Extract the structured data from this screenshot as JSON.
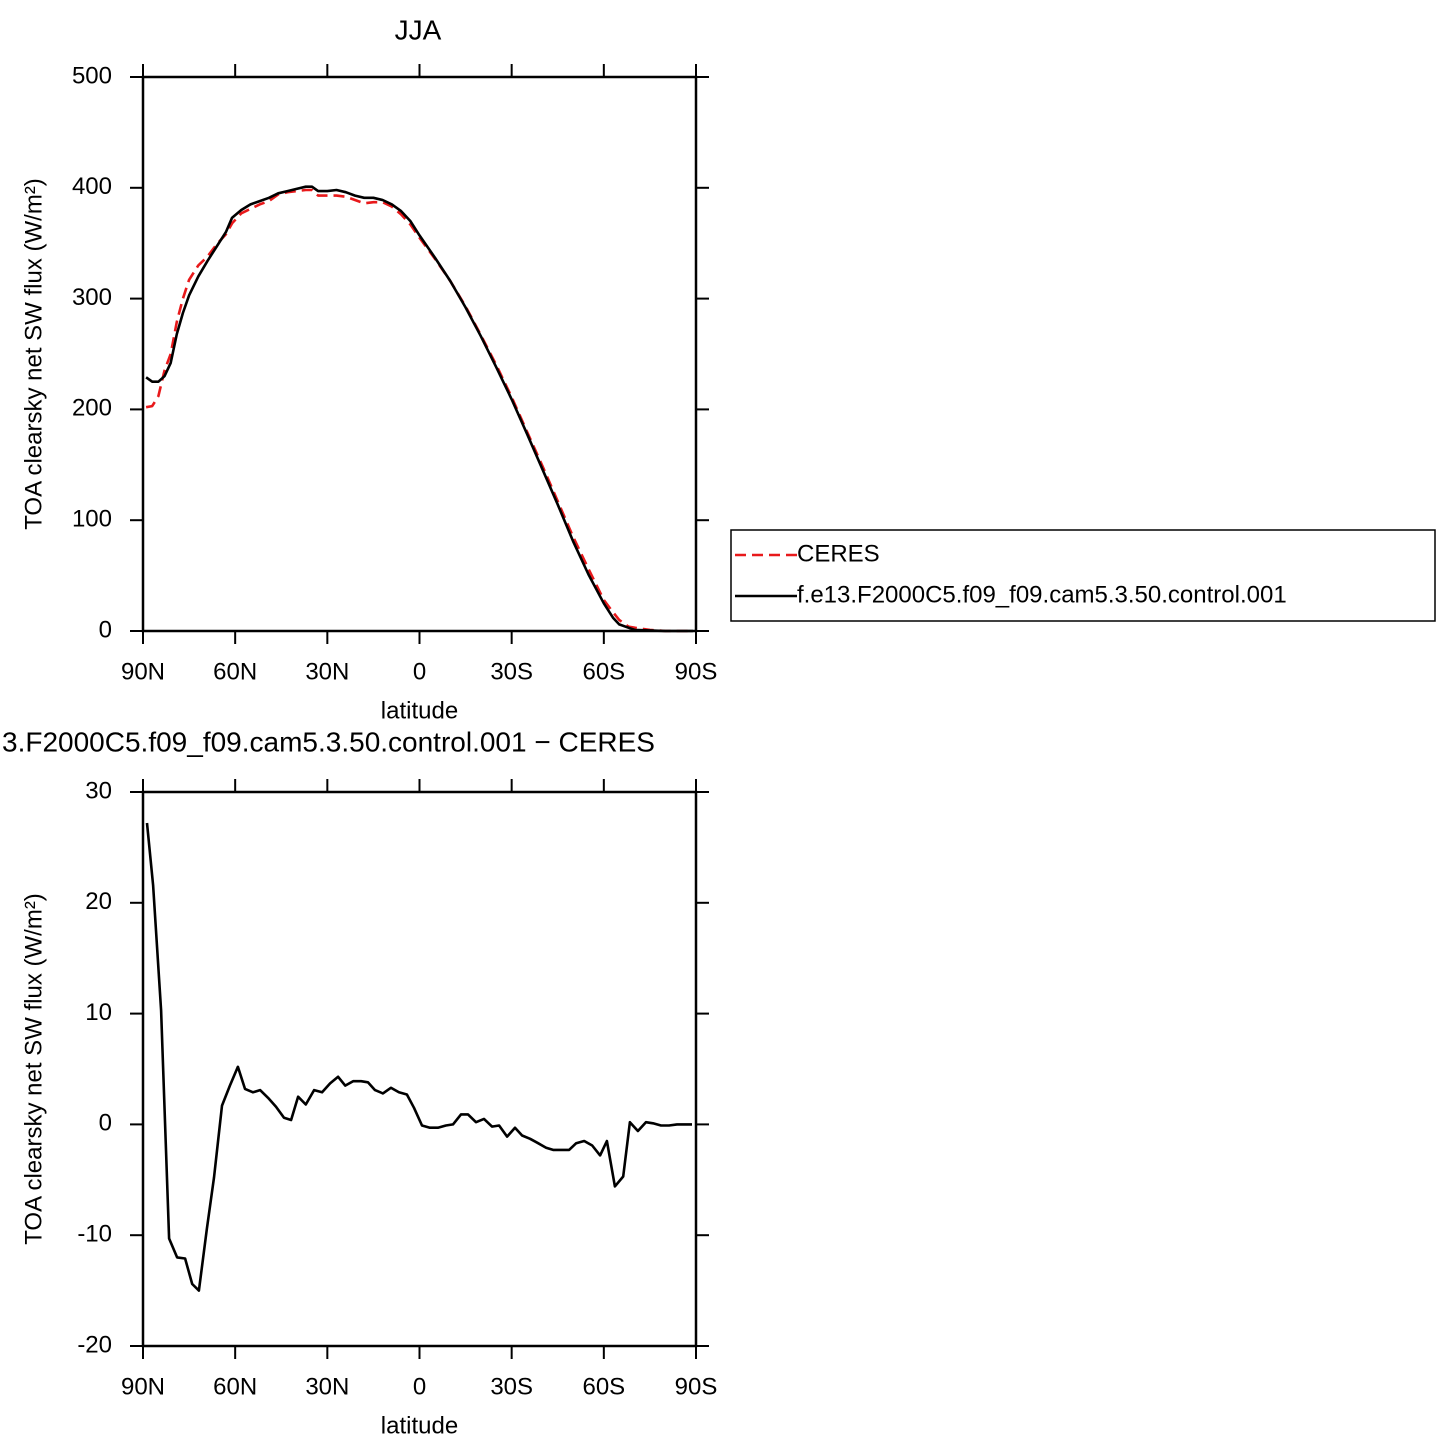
{
  "chart_data": [
    {
      "type": "line",
      "title": "JJA",
      "xlabel": "latitude",
      "ylabel": "TOA clearsky net SW flux (W/m²)",
      "x": [
        89,
        87,
        85,
        83,
        81,
        79,
        77,
        75,
        72,
        69,
        66,
        63,
        61,
        58,
        55,
        52,
        49,
        46,
        43,
        40,
        37,
        35,
        33,
        30,
        27,
        24,
        21,
        18,
        15,
        12,
        9,
        6,
        3,
        0,
        -5,
        -10,
        -15,
        -20,
        -25,
        -30,
        -35,
        -40,
        -45,
        -50,
        -55,
        -60,
        -63,
        -65,
        -68,
        -70,
        -75,
        -80,
        -85,
        -89
      ],
      "series": [
        {
          "name": "CERES",
          "color": "#e8191b",
          "dash": true,
          "values": [
            202,
            203,
            212,
            235,
            250,
            279,
            300,
            317,
            330,
            338,
            349,
            358,
            368,
            377,
            381,
            385,
            388,
            394,
            396,
            397,
            398,
            398,
            393,
            393,
            393,
            392,
            389,
            386,
            387,
            387,
            383,
            376,
            367,
            355,
            336,
            316,
            293,
            267,
            240,
            211,
            180,
            149,
            117,
            85,
            56,
            28,
            17,
            10,
            4,
            3,
            1,
            0,
            0,
            0
          ]
        },
        {
          "name": "f.e13.F2000C5.f09_f09.cam5.3.50.control.001",
          "color": "#000000",
          "dash": false,
          "values": [
            229,
            225,
            225,
            230,
            242,
            268,
            287,
            303,
            320,
            334,
            347,
            360,
            373,
            380,
            385,
            388,
            391,
            395,
            397,
            399,
            401,
            401,
            397,
            397,
            398,
            396,
            393,
            391,
            391,
            389,
            385,
            379,
            370,
            357,
            337,
            316,
            292,
            266,
            238,
            209,
            178,
            146,
            114,
            81,
            51,
            25,
            12,
            6,
            3,
            1,
            0.5,
            0,
            0,
            0
          ]
        }
      ],
      "xlim": [
        90,
        -90
      ],
      "xticks": [
        {
          "value": 90,
          "label": "90N"
        },
        {
          "value": 60,
          "label": "60N"
        },
        {
          "value": 30,
          "label": "30N"
        },
        0,
        {
          "value": -30,
          "label": "30S"
        },
        {
          "value": -60,
          "label": "60S"
        },
        {
          "value": -90,
          "label": "90S"
        }
      ],
      "ylim": [
        0,
        500
      ],
      "yticks": [
        0,
        100,
        200,
        300,
        400,
        500
      ],
      "legend": "right"
    },
    {
      "type": "line",
      "title": "3.F2000C5.f09_f09.cam5.3.50.control.001 − CERES",
      "xlabel": "latitude",
      "ylabel": "TOA clearsky net SW flux (W/m²)",
      "x": [
        88.7,
        86.7,
        84.1,
        81.5,
        78.9,
        76.3,
        74.0,
        71.8,
        69.2,
        66.9,
        64.3,
        61.7,
        59.1,
        56.8,
        54.2,
        51.9,
        49.3,
        46.7,
        44.1,
        41.8,
        39.5,
        37.0,
        34.3,
        31.7,
        29.1,
        26.5,
        24.2,
        21.6,
        19.0,
        16.8,
        14.5,
        11.9,
        9.3,
        6.7,
        4.1,
        1.8,
        -0.8,
        -3.4,
        -6.0,
        -8.6,
        -10.9,
        -13.5,
        -15.8,
        -18.4,
        -21.0,
        -23.6,
        -25.9,
        -28.5,
        -31.1,
        -33.4,
        -36.0,
        -38.6,
        -41.2,
        -43.5,
        -46.1,
        -48.7,
        -51.0,
        -53.6,
        -56.2,
        -58.8,
        -61.0,
        -63.6,
        -66.3,
        -68.5,
        -71.1,
        -73.7,
        -76.0,
        -78.6,
        -81.2,
        -83.8,
        -86.4,
        -88.7
      ],
      "series": [
        {
          "color": "#000000",
          "dash": false,
          "values": [
            27.2,
            21.6,
            10.3,
            -10.3,
            -12.0,
            -12.1,
            -14.4,
            -15.0,
            -9.4,
            -4.8,
            1.7,
            3.5,
            5.2,
            3.2,
            2.9,
            3.1,
            2.4,
            1.6,
            0.6,
            0.4,
            2.5,
            1.8,
            3.1,
            2.9,
            3.7,
            4.3,
            3.5,
            3.9,
            3.9,
            3.8,
            3.1,
            2.8,
            3.3,
            2.9,
            2.7,
            1.5,
            -0.1,
            -0.3,
            -0.3,
            -0.1,
            0,
            0.9,
            0.9,
            0.2,
            0.5,
            -0.2,
            -0.1,
            -1.1,
            -0.3,
            -1.0,
            -1.3,
            -1.7,
            -2.1,
            -2.3,
            -2.3,
            -2.3,
            -1.7,
            -1.5,
            -1.9,
            -2.8,
            -1.5,
            -5.6,
            -4.7,
            0.2,
            -0.6,
            0.2,
            0.1,
            -0.1,
            -0.1,
            0,
            0,
            0
          ]
        }
      ],
      "xlim": [
        90,
        -90
      ],
      "xticks": [
        {
          "value": 90,
          "label": "90N"
        },
        {
          "value": 60,
          "label": "60N"
        },
        {
          "value": 30,
          "label": "30N"
        },
        0,
        {
          "value": -30,
          "label": "30S"
        },
        {
          "value": -60,
          "label": "60S"
        },
        {
          "value": -90,
          "label": "90S"
        }
      ],
      "ylim": [
        -20,
        30
      ],
      "yticks": [
        -20,
        -10,
        0,
        10,
        20,
        30
      ]
    }
  ]
}
